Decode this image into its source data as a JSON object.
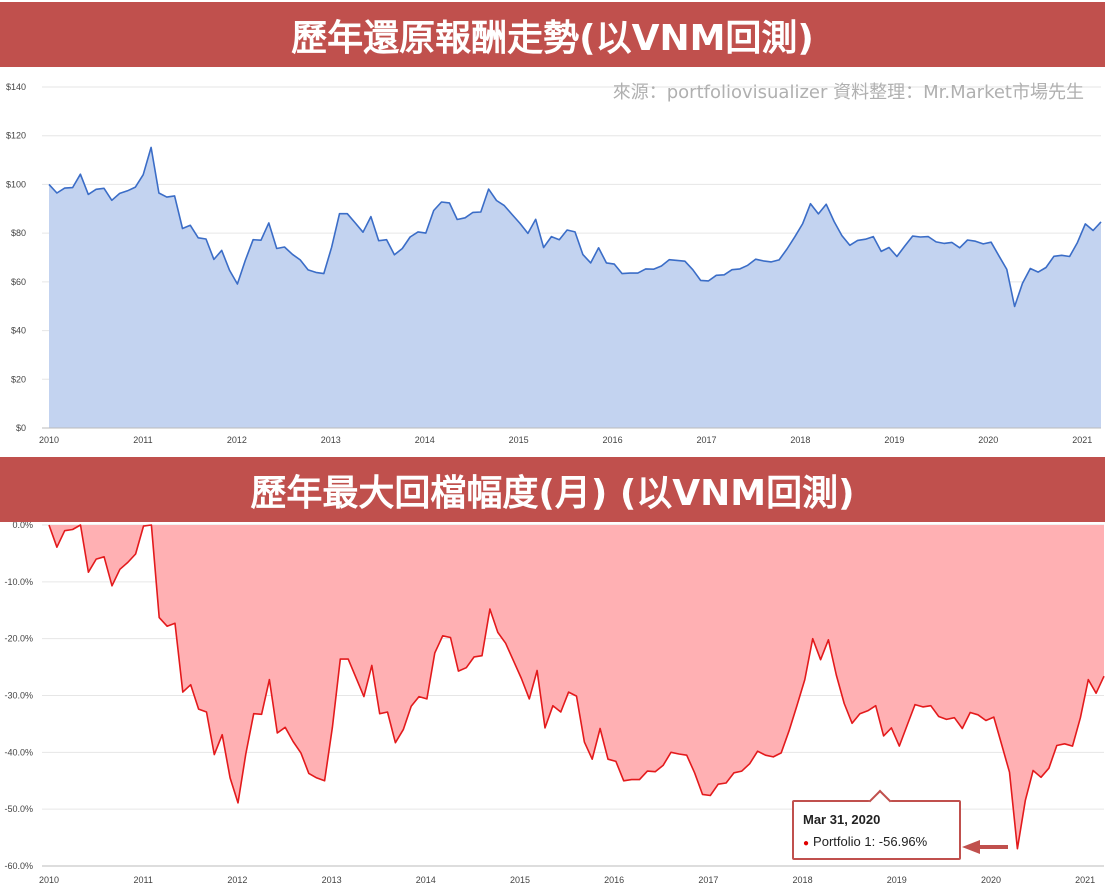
{
  "banner_top": "歷年還原報酬走勢(以VNM回測)",
  "banner_bottom": "歷年最大回檔幅度(月) (以VNM回測)",
  "source_note": "來源：portfoliovisualizer 資料整理：Mr.Market市場先生",
  "tooltip": {
    "date": "Mar 31, 2020",
    "label": "Portfolio 1: -56.96%"
  },
  "colors": {
    "banner": "#c0504d",
    "line1": "#3b6dc7",
    "area1": "#c3d3f0",
    "line2": "#e31a1c",
    "area2": "#ffb0b3",
    "arrow": "#c0504d"
  },
  "chart_data": [
    {
      "type": "area",
      "title": "",
      "xlabel": "",
      "ylabel": "",
      "x_ticks": [
        "2010",
        "2011",
        "2012",
        "2013",
        "2014",
        "2015",
        "2016",
        "2017",
        "2018",
        "2019",
        "2020",
        "2021"
      ],
      "y_ticks": [
        "$0",
        "$20",
        "$40",
        "$60",
        "$80",
        "$100",
        "$120",
        "$140"
      ],
      "ylim": [
        0,
        140
      ],
      "xlim": [
        2010.0,
        2021.2
      ],
      "grid": true,
      "series": [
        {
          "values": [
            100.0,
            96.5,
            98.5,
            98.7,
            104.2,
            95.9,
            98.0,
            98.4,
            93.5,
            96.3,
            97.4,
            98.9,
            104.0,
            115.2,
            96.5,
            94.8,
            95.3,
            81.9,
            83.2,
            78.1,
            77.6,
            69.2,
            72.9,
            64.7,
            59.1,
            68.8,
            77.3,
            77.1,
            84.2,
            73.7,
            74.3,
            71.3,
            69.0,
            64.9,
            63.9,
            63.4,
            74.2,
            88.0,
            88.0,
            84.2,
            80.4,
            86.8,
            76.9,
            77.3,
            71.1,
            73.7,
            78.4,
            80.5,
            80.0,
            89.3,
            92.8,
            92.4,
            85.6,
            86.3,
            88.5,
            88.7,
            98.1,
            93.4,
            91.3,
            87.6,
            84.0,
            79.9,
            85.7,
            74.1,
            78.6,
            77.3,
            81.3,
            80.5,
            71.2,
            67.8,
            74.0,
            67.8,
            67.3,
            63.4,
            63.6,
            63.6,
            65.3,
            65.2,
            66.5,
            69.1,
            68.8,
            68.5,
            65.0,
            60.6,
            60.4,
            62.7,
            62.9,
            65.0,
            65.3,
            66.8,
            69.3,
            68.6,
            68.2,
            69.0,
            73.5,
            78.5,
            83.9,
            92.1,
            87.9,
            91.9,
            84.8,
            79.0,
            75.0,
            77.0,
            77.5,
            78.6,
            72.5,
            74.1,
            70.4,
            74.7,
            78.8,
            78.4,
            78.6,
            76.4,
            75.8,
            76.2,
            74.0,
            77.2,
            76.7,
            75.6,
            76.3,
            70.7,
            65.1,
            49.9,
            59.4,
            65.5,
            64.0,
            65.9,
            70.5,
            70.9,
            70.4,
            76.1,
            83.8,
            81.1,
            84.6
          ]
        }
      ]
    },
    {
      "type": "area",
      "title": "",
      "xlabel": "",
      "ylabel": "",
      "x_ticks": [
        "2010",
        "2011",
        "2012",
        "2013",
        "2014",
        "2015",
        "2016",
        "2017",
        "2018",
        "2019",
        "2020",
        "2021"
      ],
      "y_ticks": [
        "0.0%",
        "-10.0%",
        "-20.0%",
        "-30.0%",
        "-40.0%",
        "-50.0%",
        "-60.0%"
      ],
      "ylim": [
        -60,
        0
      ],
      "xlim": [
        2010.0,
        2021.2
      ],
      "grid": true,
      "series": [
        {
          "values": [
            0.0,
            -3.9,
            -1.0,
            -0.8,
            0.0,
            -8.3,
            -6.0,
            -5.6,
            -10.7,
            -7.8,
            -6.6,
            -5.1,
            -0.2,
            0.0,
            -16.3,
            -17.8,
            -17.3,
            -29.4,
            -28.1,
            -32.4,
            -32.9,
            -40.4,
            -36.9,
            -44.5,
            -48.9,
            -40.3,
            -33.2,
            -33.3,
            -27.2,
            -36.6,
            -35.6,
            -38.1,
            -40.1,
            -43.7,
            -44.5,
            -45.0,
            -35.6,
            -23.6,
            -23.6,
            -26.9,
            -30.2,
            -24.7,
            -33.2,
            -32.9,
            -38.3,
            -36.0,
            -31.9,
            -30.2,
            -30.6,
            -22.5,
            -19.5,
            -19.8,
            -25.7,
            -25.1,
            -23.2,
            -23.0,
            -14.8,
            -18.9,
            -20.8,
            -23.9,
            -27.0,
            -30.6,
            -25.6,
            -35.7,
            -31.8,
            -32.9,
            -29.4,
            -30.1,
            -38.2,
            -41.2,
            -35.8,
            -41.2,
            -41.6,
            -45.0,
            -44.8,
            -44.8,
            -43.3,
            -43.4,
            -42.3,
            -40.0,
            -40.3,
            -40.5,
            -43.6,
            -47.4,
            -47.6,
            -45.6,
            -45.4,
            -43.6,
            -43.3,
            -42.0,
            -39.8,
            -40.5,
            -40.8,
            -40.1,
            -36.2,
            -31.8,
            -27.2,
            -20.0,
            -23.7,
            -20.2,
            -26.4,
            -31.4,
            -34.9,
            -33.2,
            -32.7,
            -31.8,
            -37.1,
            -35.7,
            -38.9,
            -35.2,
            -31.6,
            -32.0,
            -31.8,
            -33.7,
            -34.2,
            -33.9,
            -35.8,
            -33.0,
            -33.4,
            -34.4,
            -33.8,
            -38.6,
            -43.5,
            -56.96,
            -48.5,
            -43.2,
            -44.4,
            -42.8,
            -38.8,
            -38.5,
            -38.9,
            -33.9,
            -27.2,
            -29.6,
            -26.6
          ]
        }
      ]
    }
  ]
}
